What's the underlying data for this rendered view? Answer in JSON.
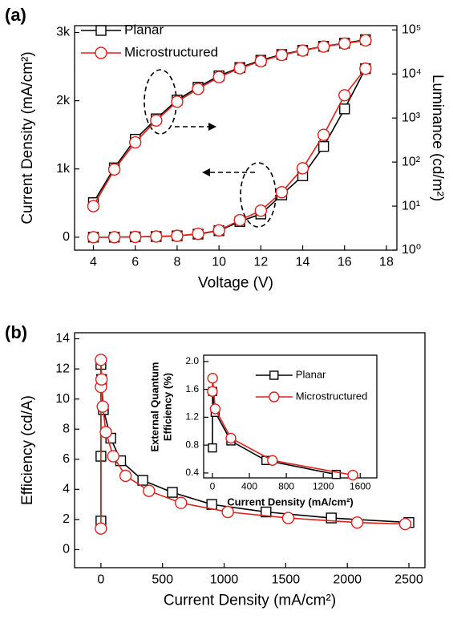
{
  "chart_data": [
    {
      "type": "line",
      "panel_label": "(a)",
      "xlabel": "Voltage (V)",
      "ylabel": "Current Density (mA/cm²)",
      "y2label": "Luminance (cd/m²)",
      "x": [
        4,
        5,
        6,
        7,
        8,
        9,
        10,
        11,
        12,
        13,
        14,
        15,
        16,
        17
      ],
      "xlim": [
        3.1,
        18.5
      ],
      "xticks": [
        4,
        6,
        8,
        10,
        12,
        14,
        16,
        18
      ],
      "ylim": [
        -190,
        3100
      ],
      "yticks": [
        0,
        {
          "value": 1000,
          "label": "1k"
        },
        {
          "value": 2000,
          "label": "2k"
        },
        {
          "value": 3000,
          "label": "3k"
        }
      ],
      "y2lim": [
        1,
        125000
      ],
      "y2_log": true,
      "y2ticks": [
        {
          "value": 1,
          "label": "10⁰"
        },
        {
          "value": 10,
          "label": "10¹"
        },
        {
          "value": 100,
          "label": "10²"
        },
        {
          "value": 1000,
          "label": "10³"
        },
        {
          "value": 10000,
          "label": "10⁴"
        },
        {
          "value": 100000,
          "label": "10⁵"
        }
      ],
      "legend": "upper left",
      "series": [
        {
          "name": "Planar",
          "color": "#000000",
          "marker": "square",
          "values": [
            0,
            0,
            5,
            10,
            20,
            45,
            95,
            230,
            340,
            620,
            900,
            1330,
            1880,
            2470
          ],
          "y2_values": [
            12,
            74,
            330,
            960,
            2560,
            5000,
            9100,
            14000,
            20500,
            27700,
            34500,
            42500,
            50000,
            60000
          ]
        },
        {
          "name": "Microstructured",
          "color": "#e0201b",
          "marker": "circle",
          "values": [
            0,
            0,
            5,
            10,
            20,
            50,
            100,
            250,
            390,
            660,
            1010,
            1500,
            2080,
            2470
          ],
          "y2_values": [
            10,
            68,
            280,
            880,
            2350,
            4600,
            8500,
            13500,
            19500,
            27000,
            34000,
            42000,
            49000,
            58000
          ]
        }
      ]
    },
    {
      "type": "line",
      "panel_label": "(b)",
      "xlabel": "Current Density (mA/cm²)",
      "ylabel": "Efficiency (cd/A)",
      "xlim": [
        -214,
        2630
      ],
      "xticks": [
        0,
        500,
        1000,
        1500,
        2000,
        2500
      ],
      "ylim": [
        -1.2,
        14.4
      ],
      "yticks": [
        0,
        2,
        4,
        6,
        8,
        10,
        12,
        14
      ],
      "series": [
        {
          "name": "Planar",
          "color": "#000000",
          "marker": "square",
          "x": [
            0,
            0,
            0,
            5,
            20,
            80,
            160,
            340,
            580,
            900,
            1340,
            1870,
            2500
          ],
          "values": [
            1.9,
            6.2,
            12.3,
            11.3,
            9.3,
            7.4,
            5.9,
            4.6,
            3.8,
            3.0,
            2.5,
            2.1,
            1.8
          ]
        },
        {
          "name": "Microstructured",
          "color": "#e0201b",
          "marker": "circle",
          "x": [
            0,
            0,
            0,
            5,
            15,
            40,
            100,
            200,
            390,
            650,
            1030,
            1520,
            2080,
            2470
          ],
          "values": [
            1.4,
            10.8,
            12.6,
            11.3,
            9.5,
            7.8,
            6.2,
            4.9,
            3.9,
            3.1,
            2.5,
            2.1,
            1.8,
            1.7
          ]
        }
      ]
    },
    {
      "type": "line",
      "xlabel": "Current Density (mA/cm²)",
      "ylabel_lines": [
        "External Quantum",
        "Efficiency (%)"
      ],
      "xlim": [
        -95,
        1780
      ],
      "xticks": [
        0,
        400,
        800,
        1200,
        1600
      ],
      "ylim": [
        0.33,
        2.09
      ],
      "yticks": [
        0.4,
        0.8,
        1.2,
        1.6,
        {
          "value": 2,
          "label": "2.0"
        }
      ],
      "legend": "upper right",
      "series": [
        {
          "name": "Planar",
          "color": "#000000",
          "marker": "square",
          "x": [
            0,
            2,
            30,
            200,
            580,
            1340
          ],
          "values": [
            0.76,
            1.57,
            1.27,
            0.86,
            0.58,
            0.38
          ]
        },
        {
          "name": "Microstructured",
          "color": "#e0201b",
          "marker": "circle",
          "x": [
            0,
            2,
            30,
            200,
            650,
            1520
          ],
          "values": [
            1.57,
            1.76,
            1.32,
            0.9,
            0.58,
            0.37
          ]
        }
      ]
    }
  ]
}
